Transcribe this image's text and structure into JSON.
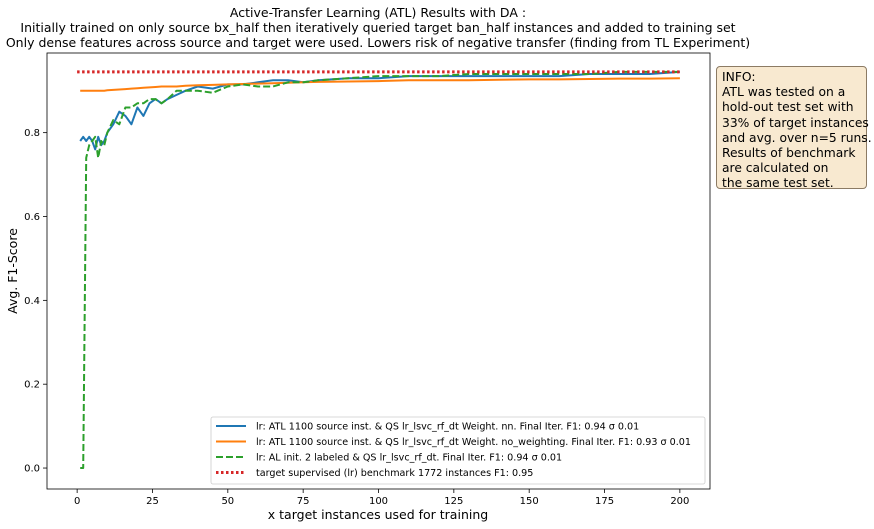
{
  "chart_data": {
    "type": "line",
    "title_lines": [
      "Active-Transfer Learning (ATL) Results with DA :",
      "Initially trained on only source bx_half then iteratively queried target ban_half instances and added to training set",
      "Only dense features across source and target were used. Lowers risk of negative transfer (finding from TL Experiment)"
    ],
    "xlabel": "x target instances used for training",
    "ylabel": "Avg. F1-Score",
    "xlim": [
      -10,
      210
    ],
    "ylim": [
      -0.05,
      0.99
    ],
    "xticks": [
      0,
      25,
      50,
      75,
      100,
      125,
      150,
      175,
      200
    ],
    "yticks": [
      0.0,
      0.2,
      0.4,
      0.6,
      0.8
    ],
    "x": [
      1,
      2,
      3,
      4,
      5,
      6,
      7,
      8,
      9,
      10,
      12,
      14,
      16,
      18,
      20,
      22,
      24,
      26,
      28,
      30,
      33,
      36,
      40,
      45,
      50,
      55,
      60,
      65,
      70,
      75,
      80,
      90,
      100,
      110,
      120,
      130,
      140,
      150,
      160,
      170,
      180,
      190,
      200
    ],
    "grid": false,
    "legend_position": "lower-right",
    "series": [
      {
        "name": "lr: ATL 1100 source inst. & QS lr_lsvc_rf_dt Weight. nn. Final Iter. F1: 0.94 σ 0.01",
        "color": "#1f77b4",
        "style": "solid",
        "values": [
          0.78,
          0.79,
          0.78,
          0.79,
          0.78,
          0.76,
          0.79,
          0.77,
          0.78,
          0.8,
          0.82,
          0.85,
          0.84,
          0.82,
          0.86,
          0.84,
          0.87,
          0.88,
          0.87,
          0.88,
          0.89,
          0.9,
          0.91,
          0.905,
          0.915,
          0.915,
          0.92,
          0.925,
          0.925,
          0.92,
          0.925,
          0.93,
          0.93,
          0.935,
          0.935,
          0.935,
          0.935,
          0.935,
          0.935,
          0.94,
          0.94,
          0.94,
          0.945
        ]
      },
      {
        "name": "lr: ATL 1100 source inst. & QS lr_lsvc_rf_dt Weight. no_weighting. Final Iter. F1: 0.93 σ 0.01",
        "color": "#ff7f0e",
        "style": "solid",
        "values": [
          0.9,
          0.9,
          0.9,
          0.9,
          0.9,
          0.9,
          0.9,
          0.9,
          0.9,
          0.901,
          0.902,
          0.903,
          0.904,
          0.905,
          0.906,
          0.907,
          0.908,
          0.909,
          0.91,
          0.91,
          0.91,
          0.912,
          0.913,
          0.914,
          0.915,
          0.916,
          0.917,
          0.918,
          0.919,
          0.92,
          0.921,
          0.922,
          0.923,
          0.925,
          0.925,
          0.925,
          0.926,
          0.927,
          0.927,
          0.928,
          0.929,
          0.929,
          0.93
        ]
      },
      {
        "name": "lr: AL init. 2 labeled & QS lr_lsvc_rf_dt. Final Iter. F1: 0.94 σ 0.01",
        "color": "#2ca02c",
        "style": "dashed",
        "values": [
          0.0,
          0.0,
          0.74,
          0.77,
          0.78,
          0.79,
          0.74,
          0.78,
          0.77,
          0.8,
          0.83,
          0.82,
          0.86,
          0.86,
          0.87,
          0.87,
          0.88,
          0.88,
          0.87,
          0.88,
          0.9,
          0.9,
          0.9,
          0.895,
          0.91,
          0.915,
          0.91,
          0.91,
          0.92,
          0.92,
          0.925,
          0.93,
          0.935,
          0.935,
          0.935,
          0.94,
          0.94,
          0.94,
          0.94,
          0.94,
          0.945,
          0.945,
          0.945
        ]
      },
      {
        "name": "target supervised (lr) benchmark 1772 instances F1: 0.95",
        "color": "#d62728",
        "style": "dotted",
        "x": [
          0,
          200
        ],
        "values": [
          0.945,
          0.945
        ]
      }
    ]
  },
  "info_box": {
    "lines": [
      "INFO:",
      "ATL was tested on a",
      "hold-out test set with",
      "33% of target instances",
      "and avg. over n=5 runs.",
      "Results of benchmark",
      "are calculated on",
      "the same test set."
    ],
    "background": "#f8e9d0"
  }
}
